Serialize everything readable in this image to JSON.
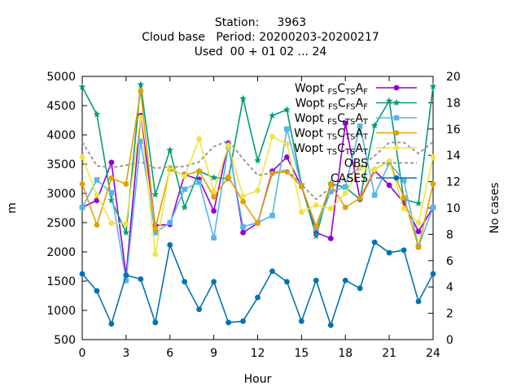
{
  "chart_data": {
    "type": "line",
    "title_lines": [
      "Station:     3963",
      "Cloud base   Period: 20200203-20200217",
      "Used  00 + 01 02 ... 24"
    ],
    "xlabel": "Hour",
    "ylabel": "m",
    "y2label": "No cases",
    "xlim": [
      0,
      24
    ],
    "ylim": [
      500,
      5000
    ],
    "y2lim": [
      0,
      20
    ],
    "xticks": [
      "0",
      "3",
      "6",
      "9",
      "12",
      "15",
      "18",
      "21",
      "24"
    ],
    "yticks": [
      "500",
      "1000",
      "1500",
      "2000",
      "2500",
      "3000",
      "3500",
      "4000",
      "4500",
      "5000"
    ],
    "y2ticks": [
      "0",
      "2",
      "4",
      "6",
      "8",
      "10",
      "12",
      "14",
      "16",
      "18",
      "20"
    ],
    "grid": false,
    "legend_position": "top-right",
    "x": [
      0,
      1,
      2,
      3,
      4,
      5,
      6,
      7,
      8,
      9,
      10,
      11,
      12,
      13,
      14,
      15,
      16,
      17,
      18,
      19,
      20,
      21,
      22,
      23,
      24
    ],
    "series": [
      {
        "legend": [
          [
            "Wopt ",
            ""
          ],
          [
            "FS",
            "sub"
          ],
          [
            "C",
            ""
          ],
          [
            "TS",
            "sub"
          ],
          [
            "A",
            ""
          ],
          [
            "F",
            "sub"
          ]
        ],
        "color": "#9400d3",
        "marker": "circle",
        "axis": "y",
        "values": [
          2760,
          2880,
          3530,
          1600,
          4330,
          2450,
          2470,
          3320,
          3240,
          2700,
          3860,
          2330,
          2490,
          3380,
          3620,
          3120,
          2330,
          2230,
          4200,
          2900,
          3390,
          3140,
          2840,
          2350,
          2760
        ]
      },
      {
        "legend": [
          [
            "Wopt ",
            ""
          ],
          [
            "FS",
            "sub"
          ],
          [
            "C",
            ""
          ],
          [
            "FS",
            "sub"
          ],
          [
            "A",
            ""
          ],
          [
            "F",
            "sub"
          ]
        ],
        "color": "#009e73",
        "marker": "star",
        "axis": "y",
        "values": [
          4820,
          4350,
          2880,
          2330,
          4860,
          2980,
          3740,
          2760,
          3380,
          3270,
          3250,
          4620,
          3560,
          4330,
          4430,
          3150,
          2270,
          3170,
          3100,
          2900,
          4160,
          4580,
          2900,
          2830,
          4830
        ]
      },
      {
        "legend": [
          [
            "Wopt ",
            ""
          ],
          [
            "FS",
            "sub"
          ],
          [
            "C",
            ""
          ],
          [
            "TS",
            "sub"
          ],
          [
            "A",
            ""
          ],
          [
            "T",
            "sub"
          ]
        ],
        "color": "#56b4e9",
        "marker": "square",
        "axis": "y",
        "values": [
          2760,
          3230,
          3010,
          1510,
          3890,
          2330,
          2500,
          3070,
          3190,
          2240,
          3800,
          2430,
          2500,
          2620,
          4100,
          3130,
          2410,
          3030,
          3110,
          4150,
          2970,
          3520,
          3220,
          2090,
          2760
        ]
      },
      {
        "legend": [
          [
            "Wopt ",
            ""
          ],
          [
            "TS",
            "sub"
          ],
          [
            "C",
            ""
          ],
          [
            "TS",
            "sub"
          ],
          [
            "A",
            ""
          ],
          [
            "T",
            "sub"
          ]
        ],
        "color": "#e69f00",
        "marker": "circle",
        "axis": "y",
        "values": [
          3160,
          2460,
          3260,
          3160,
          4750,
          2400,
          3410,
          3310,
          3380,
          2940,
          3280,
          2860,
          2490,
          3340,
          3370,
          3120,
          2440,
          3150,
          2760,
          2920,
          3410,
          3550,
          2930,
          2080,
          3160
        ]
      },
      {
        "legend": [
          [
            "Wopt ",
            ""
          ],
          [
            "TS",
            "sub"
          ],
          [
            "C",
            ""
          ],
          [
            "TS",
            "sub"
          ],
          [
            "A",
            ""
          ],
          [
            "T",
            "sub"
          ]
        ],
        "color": "#f0e442",
        "marker": "circle",
        "axis": "y",
        "values": [
          3620,
          2970,
          2490,
          2480,
          4300,
          1960,
          3450,
          3290,
          3930,
          3040,
          3820,
          2950,
          3050,
          3970,
          3850,
          2680,
          2800,
          2740,
          3000,
          3430,
          3400,
          3550,
          2740,
          2500,
          3620
        ]
      },
      {
        "legend": [
          [
            "OBS",
            ""
          ]
        ],
        "color": "#999999",
        "marker": "none",
        "dash": "4 3",
        "axis": "y",
        "values": [
          3880,
          3470,
          3440,
          3480,
          3540,
          3430,
          3450,
          3460,
          3540,
          3800,
          3900,
          3590,
          3310,
          3350,
          3400,
          3150,
          2900,
          3100,
          3250,
          3450,
          3640,
          3870,
          3870,
          3680,
          3880
        ]
      },
      {
        "legend": [
          [
            "CASES",
            ""
          ]
        ],
        "color": "#0072b2",
        "marker": "circle",
        "axis": "y2",
        "values": [
          5,
          3.7,
          1.2,
          4.9,
          4.6,
          1.3,
          7.2,
          4.4,
          2.3,
          4.4,
          1.3,
          1.4,
          3.2,
          5.2,
          4.4,
          1.4,
          4.5,
          1.1,
          4.5,
          3.9,
          7.4,
          6.6,
          6.8,
          2.9,
          5
        ]
      }
    ]
  }
}
